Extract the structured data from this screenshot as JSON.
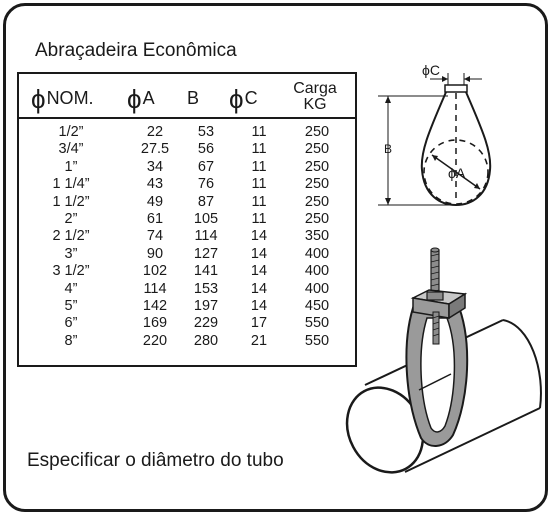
{
  "title": "Abraçadeira Econômica",
  "table": {
    "headers": {
      "nom_symbol": "ϕ",
      "nom": "NOM.",
      "a_symbol": "ϕ",
      "a": "A",
      "b": "B",
      "c_symbol": "ϕ",
      "c": "C",
      "carga_line1": "Carga",
      "carga_line2": "KG"
    },
    "rows": [
      {
        "nom": "1/2”",
        "a": "22",
        "b": "53",
        "c": "11",
        "carga": "250"
      },
      {
        "nom": "3/4”",
        "a": "27.5",
        "b": "56",
        "c": "11",
        "carga": "250"
      },
      {
        "nom": "1”",
        "a": "34",
        "b": "67",
        "c": "11",
        "carga": "250"
      },
      {
        "nom": "1 1/4”",
        "a": "43",
        "b": "76",
        "c": "11",
        "carga": "250"
      },
      {
        "nom": "1 1/2”",
        "a": "49",
        "b": "87",
        "c": "11",
        "carga": "250"
      },
      {
        "nom": "2”",
        "a": "61",
        "b": "105",
        "c": "11",
        "carga": "250"
      },
      {
        "nom": "2 1/2”",
        "a": "74",
        "b": "114",
        "c": "14",
        "carga": "350"
      },
      {
        "nom": "3”",
        "a": "90",
        "b": "127",
        "c": "14",
        "carga": "400"
      },
      {
        "nom": "3 1/2”",
        "a": "102",
        "b": "141",
        "c": "14",
        "carga": "400"
      },
      {
        "nom": "4”",
        "a": "114",
        "b": "153",
        "c": "14",
        "carga": "400"
      },
      {
        "nom": "5”",
        "a": "142",
        "b": "197",
        "c": "14",
        "carga": "450"
      },
      {
        "nom": "6”",
        "a": "169",
        "b": "229",
        "c": "17",
        "carga": "550"
      },
      {
        "nom": "8”",
        "a": "220",
        "b": "280",
        "c": "21",
        "carga": "550"
      }
    ]
  },
  "diagram": {
    "label_c": "ϕC",
    "label_b": "B",
    "label_a": "ϕA"
  },
  "colors": {
    "ink": "#1a1a1a",
    "clamp_gray": "#9a9a9a",
    "rod_gray": "#8c8c8c"
  },
  "footer": "Especificar o diâmetro do tubo"
}
